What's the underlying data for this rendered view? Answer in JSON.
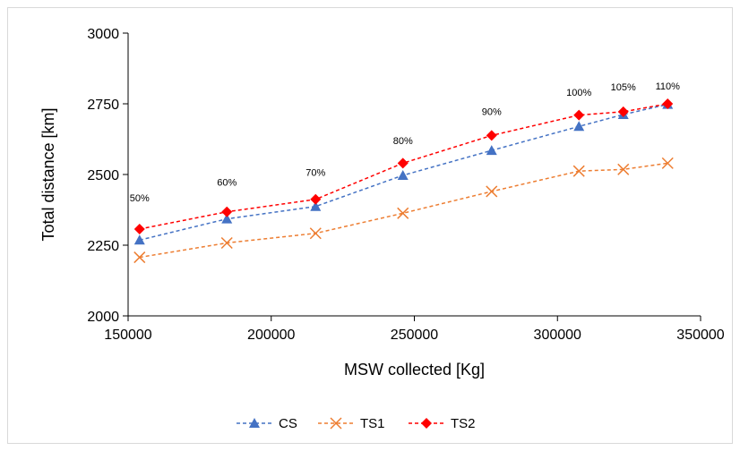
{
  "chart_data": {
    "type": "line",
    "xlabel": "MSW collected [Kg]",
    "ylabel": "Total distance [km]",
    "xlim": [
      150000,
      350000
    ],
    "ylim": [
      2000,
      3000
    ],
    "x_ticks": [
      150000,
      200000,
      250000,
      300000,
      350000
    ],
    "y_ticks": [
      2000,
      2250,
      2500,
      2750,
      3000
    ],
    "x": [
      154000,
      184500,
      215500,
      246000,
      277000,
      307500,
      323000,
      338500
    ],
    "series": [
      {
        "name": "CS",
        "color": "#4472c4",
        "marker": "triangle",
        "values": [
          2268,
          2343,
          2387,
          2497,
          2585,
          2670,
          2712,
          2748
        ]
      },
      {
        "name": "TS1",
        "color": "#ed7d31",
        "marker": "x",
        "values": [
          2207,
          2258,
          2292,
          2363,
          2440,
          2512,
          2518,
          2540
        ]
      },
      {
        "name": "TS2",
        "color": "#ff0000",
        "marker": "diamond",
        "values": [
          2307,
          2368,
          2412,
          2540,
          2638,
          2710,
          2722,
          2750
        ]
      }
    ],
    "annotations": [
      {
        "text": "50%",
        "x": 154000,
        "y": 2405
      },
      {
        "text": "60%",
        "x": 184500,
        "y": 2460
      },
      {
        "text": "70%",
        "x": 215500,
        "y": 2495
      },
      {
        "text": "80%",
        "x": 246000,
        "y": 2608
      },
      {
        "text": "90%",
        "x": 277000,
        "y": 2710
      },
      {
        "text": "100%",
        "x": 307500,
        "y": 2778
      },
      {
        "text": "105%",
        "x": 323000,
        "y": 2797
      },
      {
        "text": "110%",
        "x": 338500,
        "y": 2800
      }
    ],
    "legend_position": "bottom",
    "grid": false
  }
}
